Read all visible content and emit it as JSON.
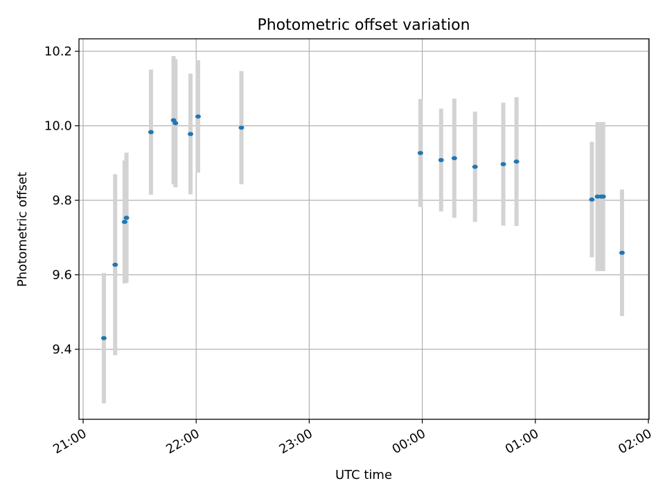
{
  "chart_data": {
    "type": "scatter",
    "title": "Photometric offset variation",
    "xlabel": "UTC time",
    "ylabel": "Photometric offset",
    "x_ticks": [
      "21:00",
      "22:00",
      "23:00",
      "00:00",
      "01:00",
      "02:00"
    ],
    "x_range": [
      "21:00",
      "02:00"
    ],
    "y_ticks": [
      "9.4",
      "9.6",
      "9.8",
      "10.0",
      "10.2"
    ],
    "ylim": [
      9.22,
      10.235
    ],
    "grid": true,
    "colors": {
      "points": "#1f77b4",
      "errorbars": "#d3d3d3",
      "grid": "#b0b0b0"
    },
    "points": [
      {
        "x": "21:11",
        "y": 9.43,
        "err": 0.175
      },
      {
        "x": "21:17",
        "y": 9.627,
        "err": 0.243
      },
      {
        "x": "21:22",
        "y": 9.742,
        "err": 0.165
      },
      {
        "x": "21:23",
        "y": 9.753,
        "err": 0.175
      },
      {
        "x": "21:36",
        "y": 9.983,
        "err": 0.168
      },
      {
        "x": "21:48",
        "y": 10.015,
        "err": 0.172
      },
      {
        "x": "21:49",
        "y": 10.007,
        "err": 0.172
      },
      {
        "x": "21:57",
        "y": 9.978,
        "err": 0.162
      },
      {
        "x": "22:01",
        "y": 10.025,
        "err": 0.151
      },
      {
        "x": "22:24",
        "y": 9.995,
        "err": 0.152
      },
      {
        "x": "23:59",
        "y": 9.927,
        "err": 0.145
      },
      {
        "x": "00:10",
        "y": 9.908,
        "err": 0.138
      },
      {
        "x": "00:17",
        "y": 9.913,
        "err": 0.16
      },
      {
        "x": "00:28",
        "y": 9.89,
        "err": 0.148
      },
      {
        "x": "00:43",
        "y": 9.897,
        "err": 0.165
      },
      {
        "x": "00:50",
        "y": 9.904,
        "err": 0.173
      },
      {
        "x": "01:30",
        "y": 9.802,
        "err": 0.155
      },
      {
        "x": "01:33",
        "y": 9.81,
        "err": 0.2
      },
      {
        "x": "01:35",
        "y": 9.81,
        "err": 0.2
      },
      {
        "x": "01:36",
        "y": 9.81,
        "err": 0.2
      },
      {
        "x": "01:46",
        "y": 9.659,
        "err": 0.17
      }
    ]
  }
}
